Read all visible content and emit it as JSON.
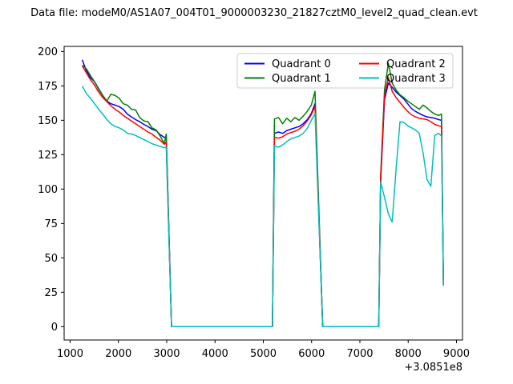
{
  "chart_data": {
    "type": "line",
    "title": "Data file: modeM0/AS1A07_004T01_9000003230_21827cztM0_level2_quad_clean.evt",
    "xlabel": "",
    "ylabel": "",
    "x_offset_label": "+3.0851e8",
    "xlim": [
      875,
      9125
    ],
    "ylim": [
      -9.7,
      203.7
    ],
    "x_ticks": [
      1000,
      2000,
      3000,
      4000,
      5000,
      6000,
      7000,
      8000,
      9000
    ],
    "y_ticks": [
      0,
      25,
      50,
      75,
      100,
      125,
      150,
      175,
      200
    ],
    "grid": false,
    "legend": {
      "position": "upper right",
      "columns": 2,
      "border_color": "#cccccc",
      "background": "#ffffff"
    },
    "axis_color": "#000000",
    "x": [
      1250,
      1335,
      1420,
      1505,
      1590,
      1675,
      1760,
      1845,
      1930,
      2015,
      2100,
      2185,
      2270,
      2355,
      2440,
      2525,
      2610,
      2695,
      2780,
      2865,
      2950,
      2990,
      3100,
      5190,
      5230,
      5315,
      5400,
      5485,
      5570,
      5655,
      5740,
      5825,
      5910,
      5995,
      6070,
      6230,
      7330,
      7390,
      7430,
      7510,
      7590,
      7670,
      7750,
      7830,
      7910,
      7990,
      8070,
      8150,
      8230,
      8310,
      8390,
      8470,
      8550,
      8630,
      8690,
      8730
    ],
    "series": [
      {
        "name": "Quadrant 0",
        "color": "#0000ff",
        "values": [
          194,
          186,
          181,
          178,
          173,
          168,
          164,
          162,
          161,
          160,
          158,
          154.5,
          152.5,
          150.5,
          149,
          147,
          145.5,
          143.5,
          142.5,
          139.5,
          137.5,
          138,
          0,
          0,
          140.5,
          141.5,
          140.5,
          142.5,
          143.5,
          144.5,
          145.5,
          147.5,
          150.5,
          155,
          162,
          0,
          0,
          0,
          105,
          165,
          177,
          174,
          170.5,
          168,
          165.5,
          162,
          158.5,
          156.5,
          155,
          153.5,
          152.5,
          152,
          151.5,
          150.5,
          150,
          30
        ]
      },
      {
        "name": "Quadrant 1",
        "color": "#008000",
        "values": [
          190,
          187.5,
          182.5,
          178,
          172.5,
          168,
          164,
          169,
          168,
          166,
          162,
          161,
          158,
          157.5,
          152,
          149.5,
          149,
          144.5,
          143,
          138.5,
          133,
          140,
          0,
          0,
          151,
          152,
          147.5,
          151.5,
          149,
          152,
          150,
          153,
          156.5,
          161,
          171,
          0,
          0,
          0,
          110,
          172,
          191.5,
          177,
          172,
          168.5,
          166.5,
          164,
          162,
          160,
          158,
          161,
          159,
          156.5,
          154.5,
          153.5,
          154.5,
          30
        ]
      },
      {
        "name": "Quadrant 2",
        "color": "#ff0000",
        "values": [
          189.5,
          184.5,
          179.5,
          175.5,
          170.5,
          166.5,
          163.5,
          160.5,
          158,
          156,
          153.5,
          151.5,
          149.5,
          147.5,
          145.5,
          143.5,
          141.5,
          140,
          137.5,
          135.5,
          132.5,
          134,
          0,
          0,
          137.5,
          137,
          138,
          140,
          141,
          142,
          143.5,
          146,
          149.5,
          154,
          160,
          0,
          0,
          0,
          108,
          168,
          181,
          171,
          166.5,
          163,
          159.5,
          156.5,
          154,
          152.5,
          151.5,
          151,
          150.5,
          149,
          147,
          146,
          145.5,
          30
        ]
      },
      {
        "name": "Quadrant 3",
        "color": "#00bfbf",
        "values": [
          175,
          169.5,
          166,
          162,
          158,
          154.5,
          150.5,
          147.5,
          145.5,
          144.5,
          143,
          140.5,
          140,
          139,
          137.5,
          136,
          134.5,
          133,
          132,
          131,
          130,
          130.5,
          0,
          0,
          131.5,
          130.5,
          132,
          134.5,
          136.5,
          137.5,
          138.5,
          140.5,
          144,
          150,
          155,
          0,
          0,
          0,
          105,
          94,
          82,
          76,
          115,
          149,
          148.5,
          146,
          144.5,
          143,
          140.5,
          126,
          107,
          102,
          139,
          140.5,
          138.5,
          30
        ]
      }
    ]
  }
}
